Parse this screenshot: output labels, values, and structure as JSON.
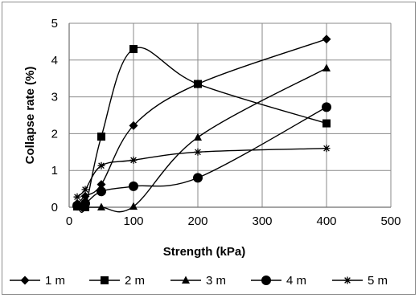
{
  "chart_data": {
    "type": "line",
    "title": "",
    "xlabel": "Strength (kPa)",
    "ylabel": "Collapse rate (%)",
    "xlim": [
      0,
      500
    ],
    "ylim": [
      0,
      5
    ],
    "xticks": [
      0,
      100,
      200,
      300,
      400,
      500
    ],
    "yticks": [
      0,
      1,
      2,
      3,
      4,
      5
    ],
    "grid": "both",
    "smooth": true,
    "legend_position": "bottom",
    "series": [
      {
        "name": "1 m",
        "marker": "diamond",
        "points": [
          [
            12.5,
            0.1
          ],
          [
            25,
            0.3
          ],
          [
            50,
            0.62
          ],
          [
            100,
            2.22
          ],
          [
            200,
            3.35
          ],
          [
            400,
            4.57
          ]
        ]
      },
      {
        "name": "2 m",
        "marker": "square",
        "points": [
          [
            12.5,
            0.02
          ],
          [
            25,
            0.0
          ],
          [
            50,
            1.92
          ],
          [
            100,
            4.3
          ],
          [
            200,
            3.35
          ],
          [
            400,
            2.28
          ]
        ]
      },
      {
        "name": "3 m",
        "marker": "triangle",
        "points": [
          [
            12.5,
            0.0
          ],
          [
            25,
            0.0
          ],
          [
            50,
            0.0
          ],
          [
            100,
            0.02
          ],
          [
            200,
            1.9
          ],
          [
            400,
            3.78
          ]
        ]
      },
      {
        "name": "4 m",
        "marker": "circle",
        "points": [
          [
            12.5,
            0.04
          ],
          [
            25,
            0.1
          ],
          [
            50,
            0.43
          ],
          [
            100,
            0.57
          ],
          [
            200,
            0.8
          ],
          [
            400,
            2.72
          ]
        ]
      },
      {
        "name": "5 m",
        "marker": "star",
        "points": [
          [
            12.5,
            0.28
          ],
          [
            25,
            0.48
          ],
          [
            50,
            1.13
          ],
          [
            100,
            1.28
          ],
          [
            200,
            1.5
          ],
          [
            400,
            1.6
          ]
        ]
      }
    ]
  }
}
